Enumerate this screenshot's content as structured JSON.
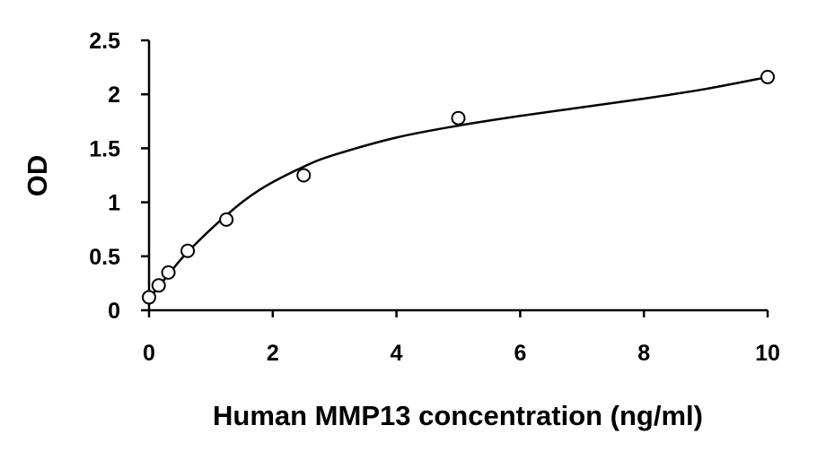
{
  "chart_data": {
    "type": "scatter",
    "title": "",
    "xlabel": "Human MMP13 concentration (ng/ml)",
    "ylabel": "OD",
    "xlim": [
      0,
      10
    ],
    "ylim": [
      0,
      2.5
    ],
    "x_ticks": [
      "0",
      "2",
      "4",
      "6",
      "8",
      "10"
    ],
    "y_ticks": [
      "0",
      "0.5",
      "1",
      "1.5",
      "2",
      "2.5"
    ],
    "grid": false,
    "legend": "none",
    "series": [
      {
        "marker": "open-circle",
        "x": [
          0,
          0.156,
          0.313,
          0.625,
          1.25,
          2.5,
          5,
          10
        ],
        "y": [
          0.12,
          0.23,
          0.35,
          0.55,
          0.84,
          1.25,
          1.78,
          2.16
        ]
      }
    ],
    "fit_curve": {
      "style": "smooth-line",
      "x": [
        0,
        0.156,
        0.313,
        0.625,
        1.25,
        1.8,
        2.5,
        3,
        4,
        5,
        6,
        7,
        8,
        9,
        10
      ],
      "y": [
        0.1,
        0.22,
        0.33,
        0.54,
        0.88,
        1.12,
        1.33,
        1.44,
        1.6,
        1.71,
        1.8,
        1.88,
        1.96,
        2.05,
        2.16
      ]
    }
  }
}
